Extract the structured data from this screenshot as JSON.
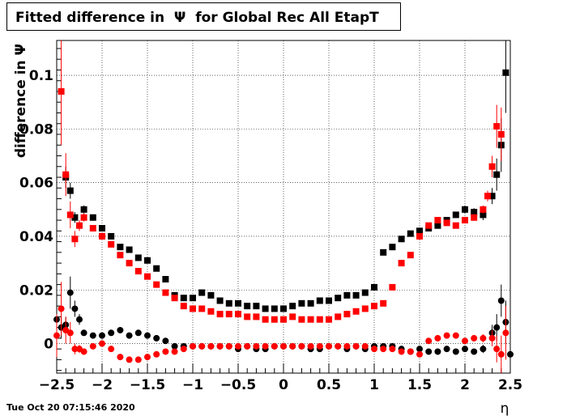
{
  "title": "Fitted difference in  Ψ  for Global Rec All EtapT",
  "timestamp": "Tue Oct 20 07:15:46 2020",
  "chart_data": {
    "type": "scatter",
    "title": "Fitted difference in  Ψ  for Global Rec All EtapT",
    "xlabel": "η",
    "ylabel": "difference in  Ψ",
    "xlim": [
      -2.5,
      2.5
    ],
    "ylim": [
      -0.011,
      0.113
    ],
    "grid": true,
    "x_ticks": [
      -2.5,
      -2,
      -1.5,
      -1,
      -0.5,
      0,
      0.5,
      1,
      1.5,
      2,
      2.5
    ],
    "x_tick_labels": [
      "−2.5",
      "−2",
      "−1.5",
      "−1",
      "−0.5",
      "0",
      "0.5",
      "1",
      "1.5",
      "2",
      "2.5"
    ],
    "y_ticks": [
      0,
      0.02,
      0.04,
      0.06,
      0.08,
      0.1
    ],
    "y_tick_labels": [
      "0",
      "0.02",
      "0.04",
      "0.06",
      "0.08",
      "0.1"
    ],
    "series": [
      {
        "marker": "square",
        "color": "#000000",
        "x": [
          -2.4,
          -2.35,
          -2.3,
          -2.2,
          -2.1,
          -2.0,
          -1.9,
          -1.8,
          -1.7,
          -1.6,
          -1.5,
          -1.4,
          -1.3,
          -1.2,
          -1.1,
          -1.0,
          -0.9,
          -0.8,
          -0.7,
          -0.6,
          -0.5,
          -0.4,
          -0.3,
          -0.2,
          -0.1,
          0.0,
          0.1,
          0.2,
          0.3,
          0.4,
          0.5,
          0.6,
          0.7,
          0.8,
          0.9,
          1.0,
          1.1,
          1.2,
          1.3,
          1.4,
          1.5,
          1.6,
          1.7,
          1.8,
          1.9,
          2.0,
          2.1,
          2.2,
          2.3,
          2.35,
          2.4,
          2.45
        ],
        "y": [
          0.062,
          0.057,
          0.047,
          0.05,
          0.047,
          0.043,
          0.04,
          0.036,
          0.035,
          0.032,
          0.031,
          0.028,
          0.024,
          0.018,
          0.017,
          0.017,
          0.019,
          0.018,
          0.016,
          0.015,
          0.015,
          0.014,
          0.014,
          0.013,
          0.013,
          0.013,
          0.014,
          0.015,
          0.015,
          0.016,
          0.016,
          0.017,
          0.018,
          0.018,
          0.019,
          0.021,
          0.034,
          0.036,
          0.039,
          0.041,
          0.042,
          0.043,
          0.044,
          0.046,
          0.048,
          0.05,
          0.049,
          0.048,
          0.055,
          0.063,
          0.074,
          0.101
        ],
        "yerr": [
          0.004,
          0.003,
          0.002,
          0.0015,
          0.001,
          0.001,
          0.001,
          0.001,
          0.0008,
          0.0008,
          0.0008,
          0.0008,
          0.0008,
          0.0008,
          0.0008,
          0.0008,
          0.0008,
          0.0008,
          0.0008,
          0.0008,
          0.0008,
          0.0008,
          0.0008,
          0.0008,
          0.0008,
          0.0008,
          0.0008,
          0.0008,
          0.0008,
          0.0008,
          0.0008,
          0.0008,
          0.0008,
          0.0008,
          0.0008,
          0.001,
          0.001,
          0.001,
          0.001,
          0.001,
          0.001,
          0.001,
          0.001,
          0.001,
          0.0012,
          0.0015,
          0.0015,
          0.002,
          0.003,
          0.006,
          0.01,
          0.015
        ]
      },
      {
        "marker": "square",
        "color": "#ff0000",
        "x": [
          -2.45,
          -2.4,
          -2.35,
          -2.3,
          -2.25,
          -2.2,
          -2.1,
          -2.0,
          -1.9,
          -1.8,
          -1.7,
          -1.6,
          -1.5,
          -1.4,
          -1.3,
          -1.2,
          -1.1,
          -1.0,
          -0.9,
          -0.8,
          -0.7,
          -0.6,
          -0.5,
          -0.4,
          -0.3,
          -0.2,
          -0.1,
          0.0,
          0.1,
          0.2,
          0.3,
          0.4,
          0.5,
          0.6,
          0.7,
          0.8,
          0.9,
          1.0,
          1.1,
          1.2,
          1.3,
          1.4,
          1.5,
          1.6,
          1.7,
          1.8,
          1.9,
          2.0,
          2.1,
          2.2,
          2.25,
          2.3,
          2.35,
          2.4
        ],
        "y": [
          0.094,
          0.063,
          0.048,
          0.039,
          0.044,
          0.047,
          0.043,
          0.04,
          0.037,
          0.033,
          0.03,
          0.027,
          0.025,
          0.022,
          0.019,
          0.017,
          0.014,
          0.013,
          0.013,
          0.012,
          0.011,
          0.011,
          0.011,
          0.01,
          0.01,
          0.009,
          0.009,
          0.009,
          0.01,
          0.009,
          0.009,
          0.009,
          0.009,
          0.01,
          0.011,
          0.012,
          0.013,
          0.014,
          0.015,
          0.021,
          0.03,
          0.033,
          0.04,
          0.044,
          0.046,
          0.045,
          0.044,
          0.046,
          0.047,
          0.05,
          0.055,
          0.066,
          0.081,
          0.078
        ],
        "yerr": [
          0.02,
          0.008,
          0.005,
          0.003,
          0.002,
          0.0015,
          0.001,
          0.001,
          0.001,
          0.0008,
          0.0008,
          0.0008,
          0.0008,
          0.0008,
          0.0008,
          0.0008,
          0.0008,
          0.0008,
          0.0008,
          0.0008,
          0.0008,
          0.0008,
          0.0008,
          0.0008,
          0.0008,
          0.0008,
          0.0008,
          0.0008,
          0.0008,
          0.0008,
          0.0008,
          0.0008,
          0.0008,
          0.0008,
          0.0008,
          0.0008,
          0.0008,
          0.0008,
          0.001,
          0.001,
          0.001,
          0.001,
          0.001,
          0.001,
          0.001,
          0.001,
          0.001,
          0.001,
          0.0012,
          0.0015,
          0.002,
          0.004,
          0.008,
          0.01
        ]
      },
      {
        "marker": "circle",
        "color": "#000000",
        "x": [
          -2.5,
          -2.45,
          -2.4,
          -2.35,
          -2.3,
          -2.25,
          -2.2,
          -2.1,
          -2.0,
          -1.9,
          -1.8,
          -1.7,
          -1.6,
          -1.5,
          -1.4,
          -1.3,
          -1.2,
          -1.1,
          -1.0,
          -0.9,
          -0.8,
          -0.7,
          -0.6,
          -0.5,
          -0.4,
          -0.3,
          -0.2,
          -0.1,
          0.0,
          0.1,
          0.2,
          0.3,
          0.4,
          0.5,
          0.6,
          0.7,
          0.8,
          0.9,
          1.0,
          1.1,
          1.2,
          1.3,
          1.4,
          1.5,
          1.6,
          1.7,
          1.8,
          1.9,
          2.0,
          2.1,
          2.2,
          2.3,
          2.35,
          2.4,
          2.45,
          2.5
        ],
        "y": [
          0.009,
          0.006,
          0.007,
          0.019,
          0.013,
          0.009,
          0.004,
          0.003,
          0.003,
          0.004,
          0.005,
          0.003,
          0.004,
          0.003,
          0.002,
          0.001,
          -0.001,
          -0.001,
          -0.001,
          -0.001,
          -0.001,
          -0.001,
          -0.001,
          -0.002,
          -0.001,
          -0.002,
          -0.002,
          -0.001,
          -0.001,
          -0.001,
          -0.001,
          -0.002,
          -0.002,
          -0.001,
          -0.001,
          -0.002,
          -0.001,
          -0.002,
          -0.001,
          -0.001,
          -0.001,
          -0.002,
          -0.003,
          -0.002,
          -0.003,
          -0.003,
          -0.002,
          -0.003,
          -0.002,
          -0.003,
          -0.002,
          0.004,
          0.006,
          0.016,
          0.008,
          -0.004
        ],
        "yerr": [
          0.006,
          0.004,
          0.003,
          0.006,
          0.003,
          0.002,
          0.001,
          0.0008,
          0.0008,
          0.0008,
          0.0008,
          0.0008,
          0.0008,
          0.0008,
          0.0008,
          0.0008,
          0.0008,
          0.0008,
          0.0008,
          0.0008,
          0.0008,
          0.0008,
          0.0008,
          0.0008,
          0.0008,
          0.0008,
          0.0008,
          0.0008,
          0.0008,
          0.0008,
          0.0008,
          0.0008,
          0.0008,
          0.0008,
          0.0008,
          0.0008,
          0.0008,
          0.0008,
          0.0008,
          0.0008,
          0.0008,
          0.0008,
          0.0008,
          0.0008,
          0.0008,
          0.0008,
          0.0008,
          0.0008,
          0.0008,
          0.001,
          0.0015,
          0.003,
          0.005,
          0.006,
          0.008,
          0.012
        ]
      },
      {
        "marker": "circle",
        "color": "#ff0000",
        "x": [
          -2.5,
          -2.45,
          -2.4,
          -2.35,
          -2.3,
          -2.25,
          -2.2,
          -2.1,
          -2.0,
          -1.9,
          -1.8,
          -1.7,
          -1.6,
          -1.5,
          -1.4,
          -1.3,
          -1.2,
          -1.1,
          -1.0,
          -0.9,
          -0.8,
          -0.7,
          -0.6,
          -0.5,
          -0.4,
          -0.3,
          -0.2,
          -0.1,
          0.0,
          0.1,
          0.2,
          0.3,
          0.4,
          0.5,
          0.6,
          0.7,
          0.8,
          0.9,
          1.0,
          1.1,
          1.2,
          1.3,
          1.4,
          1.5,
          1.6,
          1.7,
          1.8,
          1.9,
          2.0,
          2.1,
          2.2,
          2.3,
          2.35,
          2.4,
          2.45
        ],
        "y": [
          0.003,
          0.013,
          0.005,
          0.004,
          -0.002,
          -0.002,
          -0.003,
          -0.001,
          0.0,
          -0.002,
          -0.005,
          -0.006,
          -0.006,
          -0.005,
          -0.004,
          -0.003,
          -0.003,
          -0.002,
          -0.001,
          -0.001,
          -0.001,
          -0.001,
          -0.001,
          -0.001,
          -0.001,
          -0.001,
          -0.001,
          -0.001,
          -0.001,
          -0.001,
          -0.001,
          -0.001,
          -0.001,
          -0.001,
          -0.001,
          -0.001,
          -0.001,
          -0.001,
          -0.002,
          -0.002,
          -0.002,
          -0.003,
          -0.003,
          -0.004,
          0.001,
          0.002,
          0.003,
          0.003,
          0.001,
          0.002,
          0.002,
          0.002,
          -0.002,
          -0.004,
          0.004
        ],
        "yerr": [
          0.008,
          0.01,
          0.005,
          0.004,
          0.002,
          0.0015,
          0.001,
          0.0008,
          0.0008,
          0.0008,
          0.0008,
          0.0008,
          0.0008,
          0.0008,
          0.0008,
          0.0008,
          0.0008,
          0.0008,
          0.0008,
          0.0008,
          0.0008,
          0.0008,
          0.0008,
          0.0008,
          0.0008,
          0.0008,
          0.0008,
          0.0008,
          0.0008,
          0.0008,
          0.0008,
          0.0008,
          0.0008,
          0.0008,
          0.0008,
          0.0008,
          0.0008,
          0.0008,
          0.0008,
          0.0008,
          0.0008,
          0.0008,
          0.0008,
          0.0008,
          0.0008,
          0.0008,
          0.0008,
          0.0008,
          0.001,
          0.001,
          0.0015,
          0.003,
          0.005,
          0.007,
          0.01
        ]
      }
    ]
  }
}
